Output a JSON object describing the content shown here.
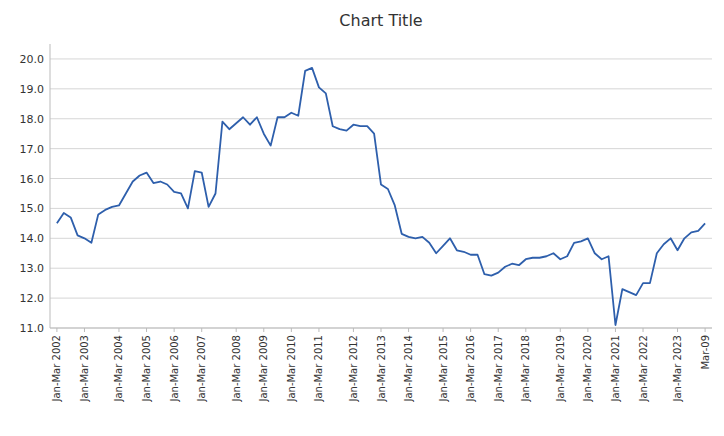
{
  "chart_data": {
    "type": "line",
    "title": "Chart Title",
    "color": "#2E5FAC",
    "grid": true,
    "categories": [
      "Jan-Mar 2002",
      null,
      null,
      null,
      "Jan-Mar 2003",
      null,
      null,
      null,
      null,
      "Jan-Mar 2004",
      null,
      null,
      null,
      "Jan-Mar 2005",
      null,
      null,
      null,
      "Jan-Mar 2006",
      null,
      null,
      null,
      "Jan-Mar 2007",
      null,
      null,
      null,
      null,
      "Jan-Mar 2008",
      null,
      null,
      null,
      "Jan-Mar 2009",
      null,
      null,
      null,
      "Jan-Mar 2010",
      null,
      null,
      null,
      "Jan-Mar 2011",
      null,
      null,
      null,
      null,
      "Jan-Mar 2012",
      null,
      null,
      null,
      "Jan-Mar 2013",
      null,
      null,
      null,
      "Jan-Mar 2014",
      null,
      null,
      null,
      null,
      "Jan-Mar 2015",
      null,
      null,
      null,
      "Jan-Mar 2016",
      null,
      null,
      null,
      "Jan-Mar 2017",
      null,
      null,
      null,
      "Jan-Mar 2018",
      null,
      null,
      null,
      null,
      "Jan-Mar 2019",
      null,
      null,
      null,
      "Jan-Mar 2020",
      null,
      null,
      null,
      "Jan-Mar 2021",
      null,
      null,
      null,
      "Jan-Mar 2022",
      null,
      null,
      null,
      null,
      "Jan-Mar 2023",
      null,
      null,
      null,
      "Mar-09"
    ],
    "values": [
      14.5,
      14.85,
      14.7,
      14.1,
      14.0,
      13.85,
      14.8,
      14.95,
      15.05,
      15.1,
      15.5,
      15.9,
      16.1,
      16.2,
      15.85,
      15.9,
      15.8,
      15.55,
      15.5,
      15.0,
      16.25,
      16.2,
      15.05,
      15.5,
      17.9,
      17.65,
      17.85,
      18.05,
      17.8,
      18.05,
      17.5,
      17.1,
      18.05,
      18.05,
      18.2,
      18.1,
      19.6,
      19.7,
      19.05,
      18.85,
      17.75,
      17.65,
      17.6,
      17.8,
      17.75,
      17.75,
      17.5,
      15.8,
      15.65,
      15.1,
      14.15,
      14.05,
      14.0,
      14.05,
      13.85,
      13.5,
      13.75,
      14.0,
      13.6,
      13.55,
      13.45,
      13.45,
      12.8,
      12.75,
      12.85,
      13.05,
      13.15,
      13.1,
      13.3,
      13.35,
      13.35,
      13.4,
      13.5,
      13.3,
      13.4,
      13.85,
      13.9,
      14.0,
      13.5,
      13.3,
      13.4,
      11.1,
      12.3,
      12.2,
      12.1,
      12.5,
      12.5,
      13.5,
      13.8,
      14.0,
      13.6,
      14.0,
      14.2,
      14.25,
      14.5
    ],
    "ylim": [
      11.0,
      20.5
    ],
    "yticks": [
      {
        "value": 11,
        "label": "11.0"
      },
      {
        "value": 12,
        "label": "12.0"
      },
      {
        "value": 13,
        "label": "13.0"
      },
      {
        "value": 14,
        "label": "14.0"
      },
      {
        "value": 15,
        "label": "15.0"
      },
      {
        "value": 16,
        "label": "16.0"
      },
      {
        "value": 17,
        "label": "17.0"
      },
      {
        "value": 18,
        "label": "18.0"
      },
      {
        "value": 19,
        "label": "19.0"
      },
      {
        "value": 20,
        "label": "20.0"
      }
    ]
  }
}
